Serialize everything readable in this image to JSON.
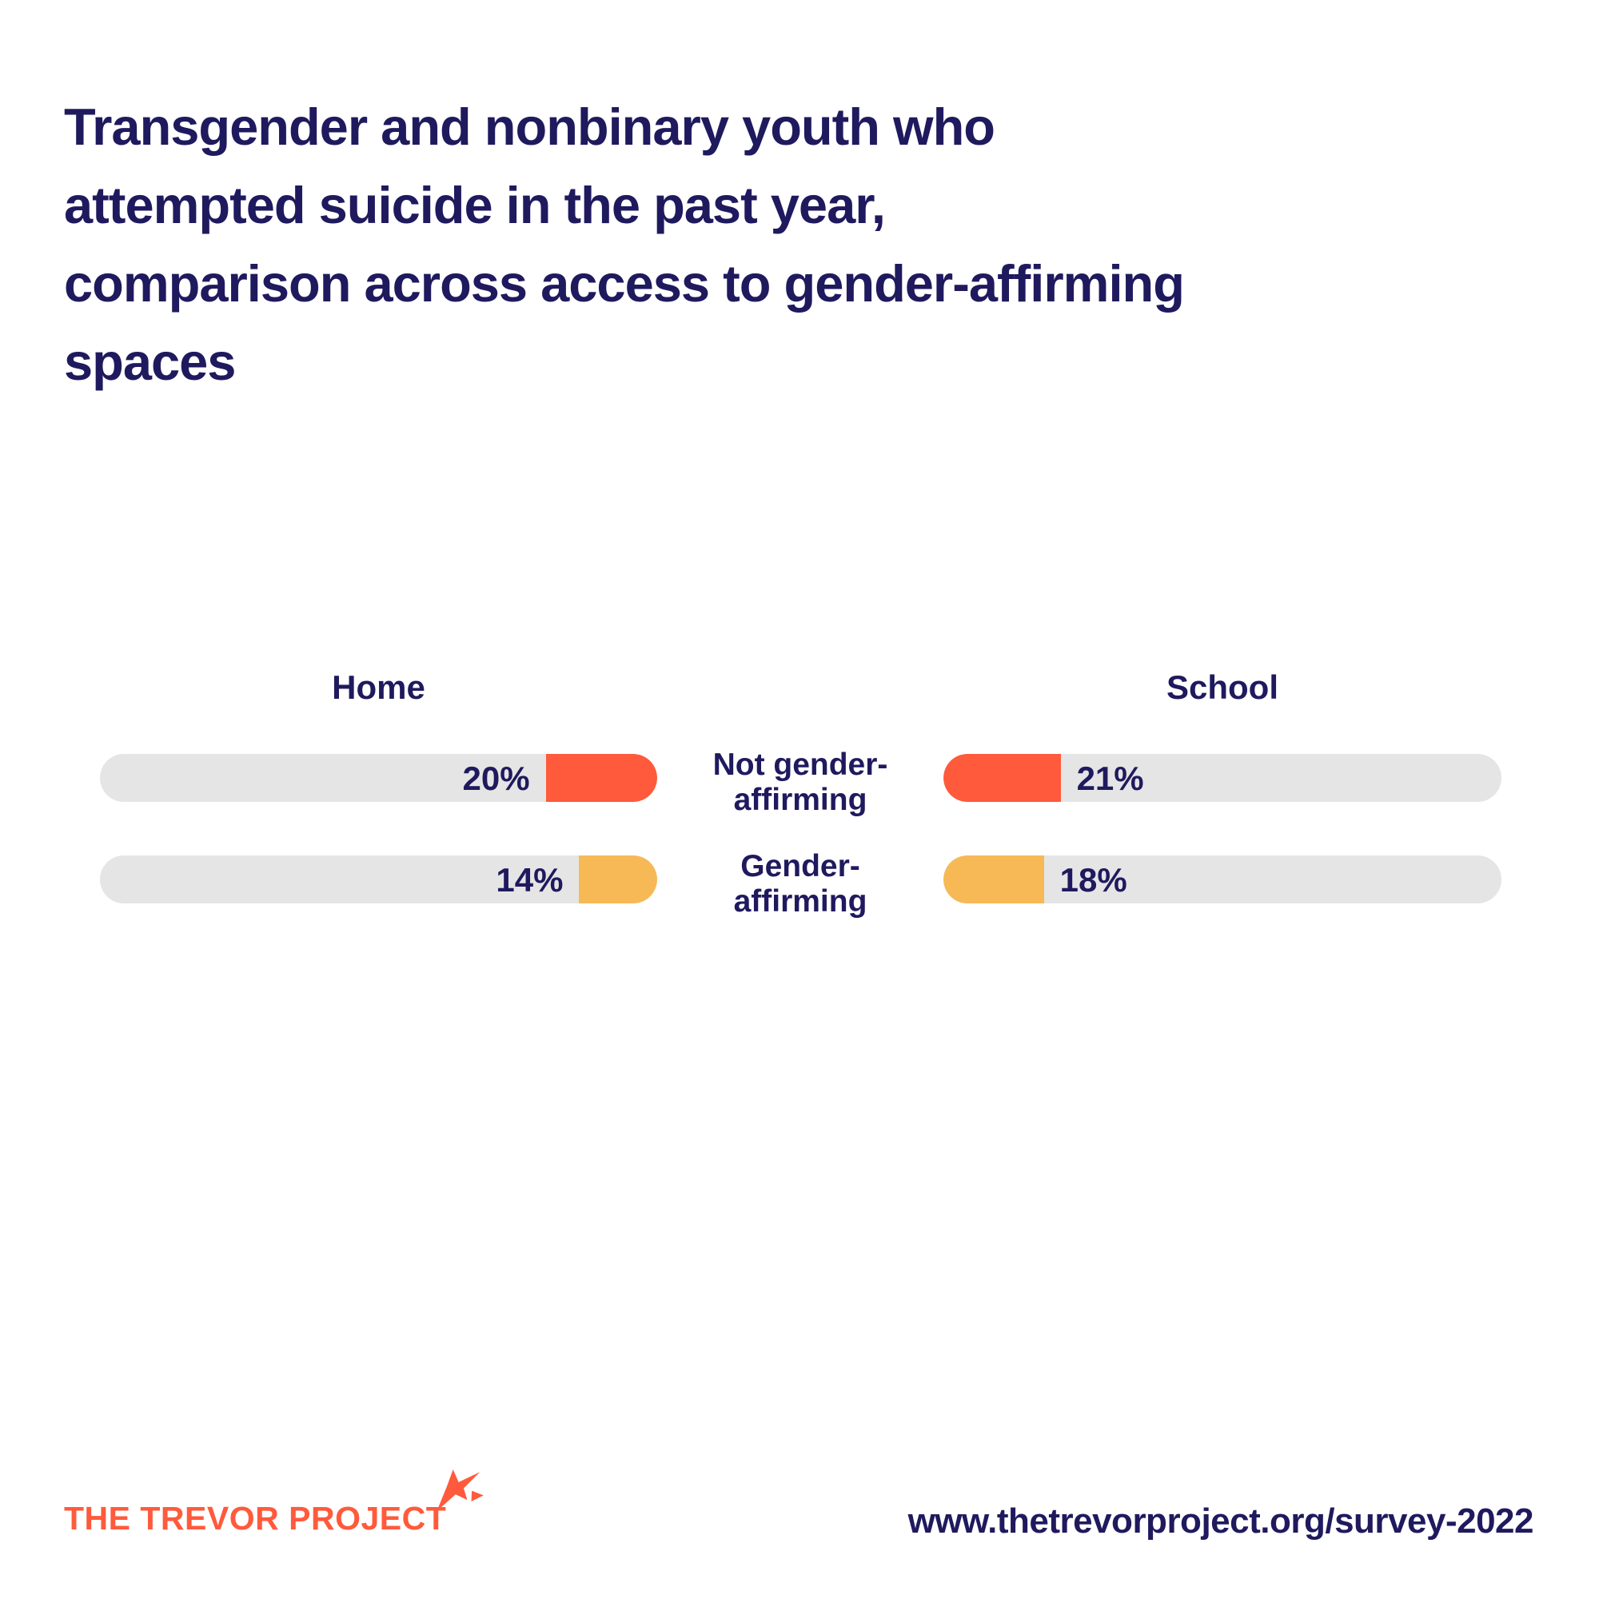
{
  "colors": {
    "navy": "#1F1A5E",
    "orange": "#FF5A3C",
    "amber": "#F7B956",
    "track": "#E5E5E5",
    "background": "#FFFFFF"
  },
  "title": {
    "lines": [
      "Transgender and nonbinary youth who",
      "attempted suicide in the past year,",
      "comparison across access to gender-affirming",
      "spaces"
    ]
  },
  "chart": {
    "home_header": "Home",
    "school_header": "School",
    "rows": [
      {
        "label_line1": "Not gender-",
        "label_line2": "affirming",
        "home_value": 20,
        "home_label": "20%",
        "school_value": 21,
        "school_label": "21%",
        "color": "#FF5A3C"
      },
      {
        "label_line1": "Gender-",
        "label_line2": "affirming",
        "home_value": 14,
        "home_label": "14%",
        "school_value": 18,
        "school_label": "18%",
        "color": "#F7B956"
      }
    ]
  },
  "chart_data": {
    "type": "bar",
    "title": "Transgender and nonbinary youth who attempted suicide in the past year, comparison across access to gender-affirming spaces",
    "categories": [
      "Not gender-affirming",
      "Gender-affirming"
    ],
    "series": [
      {
        "name": "Home",
        "values": [
          20,
          14
        ]
      },
      {
        "name": "School",
        "values": [
          21,
          18
        ]
      }
    ],
    "unit": "%",
    "xlim": [
      0,
      100
    ],
    "layout": "mirrored horizontal pill bars, Home fills anchored right, School fills anchored left, category labels centered between columns",
    "series_colors": {
      "Not gender-affirming": "#FF5A3C",
      "Gender-affirming": "#F7B956"
    },
    "track_color": "#E5E5E5",
    "grid": false,
    "legend_position": "center-labels"
  },
  "footer": {
    "logo_text": "THE TREVOR PROJECT",
    "url": "www.thetrevorproject.org/survey-2022"
  }
}
